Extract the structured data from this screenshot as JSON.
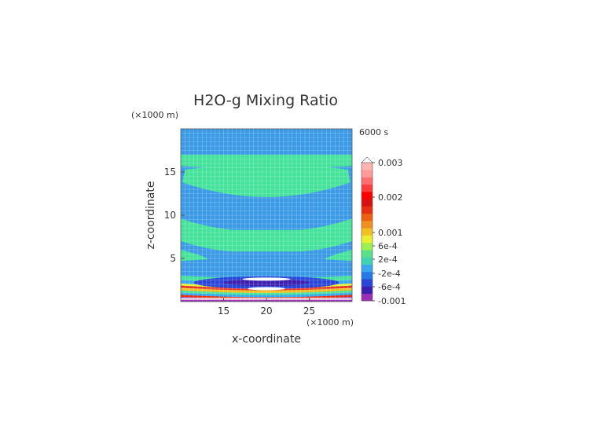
{
  "chart_data": {
    "type": "heatmap",
    "title": "H2O-g Mixing Ratio",
    "time_label": "6000 s",
    "xlabel": "x-coordinate",
    "ylabel": "z-coordinate",
    "x_unit": "(×1000 m)",
    "y_unit": "(×1000 m)",
    "xlim": [
      10,
      30
    ],
    "ylim": [
      0,
      20
    ],
    "x_ticks": [
      15,
      20,
      25
    ],
    "y_ticks": [
      5,
      10,
      15
    ],
    "grid": true,
    "background_value_color": "#3a9ae6",
    "colorbar": {
      "position": "right",
      "labels": [
        "0.003",
        "0.002",
        "0.001",
        "6e-4",
        "2e-4",
        "-2e-4",
        "-6e-4",
        "-0.001"
      ],
      "colors": [
        "#9a2fb5",
        "#3c1fb0",
        "#2a46d8",
        "#2478e8",
        "#3aa8f0",
        "#3ed4b2",
        "#5ae08a",
        "#9ef050",
        "#e8f030",
        "#f2c020",
        "#f09020",
        "#ee6010",
        "#e83010",
        "#d81010",
        "#ff0000",
        "#ff3c3c",
        "#ff6e6e",
        "#ff9a9a",
        "#ffb4b4"
      ]
    },
    "features": [
      {
        "name": "upper-band",
        "z_range": [
          13.4,
          17.0
        ],
        "value_color": "#44e29a"
      },
      {
        "name": "mid-band",
        "z_range": [
          5.8,
          9.6
        ],
        "value_color": "#44e29a"
      },
      {
        "name": "lower-shear-layer",
        "z_range": [
          0.3,
          3.0
        ],
        "value_color": "#ee3020"
      }
    ]
  }
}
